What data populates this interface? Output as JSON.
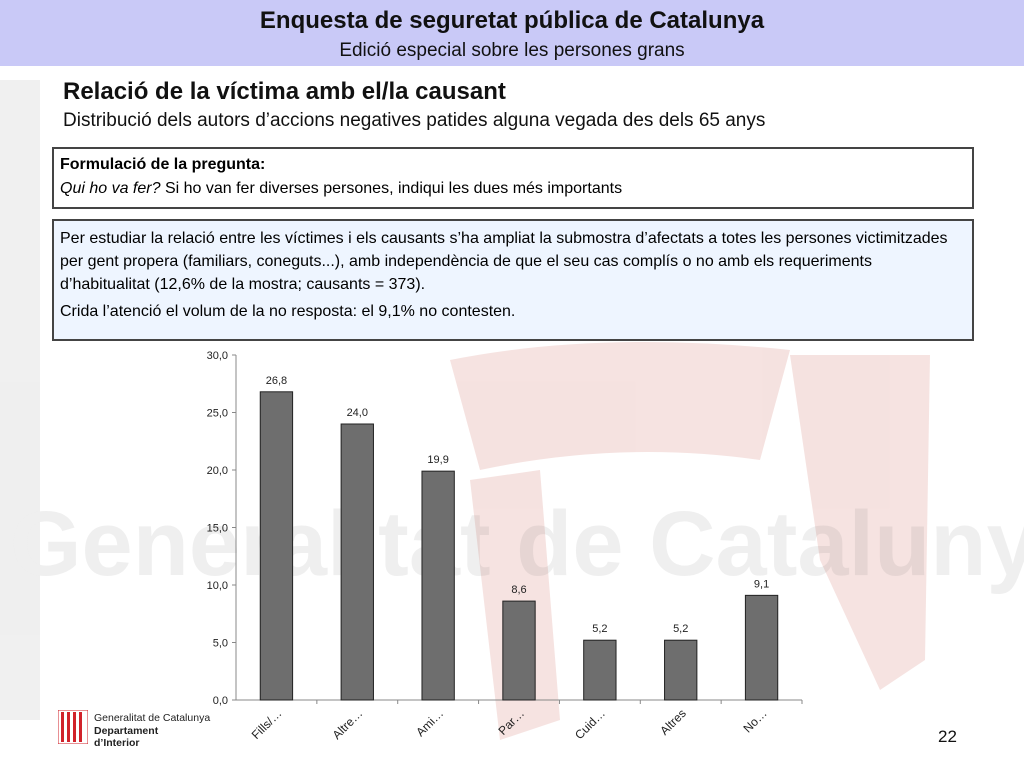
{
  "header": {
    "title": "Enquesta de seguretat pública de Catalunya",
    "subtitle": "Edició especial sobre les persones grans"
  },
  "section": {
    "title": "Relació de la víctima amb el/la causant",
    "subtitle": "Distribució dels autors d’accions negatives patides alguna vegada des dels 65 anys"
  },
  "question_box": {
    "heading": "Formulació de la pregunta:",
    "question_italic": "Qui ho va fer?",
    "question_rest": "Si ho van fer diverses persones, indiqui les dues més importants"
  },
  "note_box": {
    "paragraph1": "Per estudiar la relació entre les víctimes i els causants s’ha ampliat la submostra d’afectats a totes les persones victimitzades per gent propera (familiars, coneguts...), amb independència de que el seu cas complís o no amb els requeriments d’habitualitat (12,6% de la mostra; causants = 373).",
    "paragraph2": "Crida l’atenció el volum de la no resposta: el 9,1% no contesten."
  },
  "chart_data": {
    "type": "bar",
    "categories": [
      "Fills/…",
      "Altre…",
      "Ami…",
      "Par…",
      "Cuid…",
      "Altres",
      "No…"
    ],
    "values": [
      26.8,
      24.0,
      19.9,
      8.6,
      5.2,
      5.2,
      9.1
    ],
    "value_labels": [
      "26,8",
      "24,0",
      "19,9",
      "8,6",
      "5,2",
      "5,2",
      "9,1"
    ],
    "ylim": [
      0,
      30
    ],
    "yticks": [
      0,
      5,
      10,
      15,
      20,
      25,
      30
    ],
    "ytick_labels": [
      "0,0",
      "5,0",
      "10,0",
      "15,0",
      "20,0",
      "25,0",
      "30,0"
    ],
    "title": "",
    "xlabel": "",
    "ylabel": "",
    "grid": false,
    "bar_color": "#6e6e6e"
  },
  "footer": {
    "org": "Generalitat de Catalunya",
    "dept": "Departament d’Interior",
    "logo_color": "#d1222a"
  },
  "page_number": "22"
}
